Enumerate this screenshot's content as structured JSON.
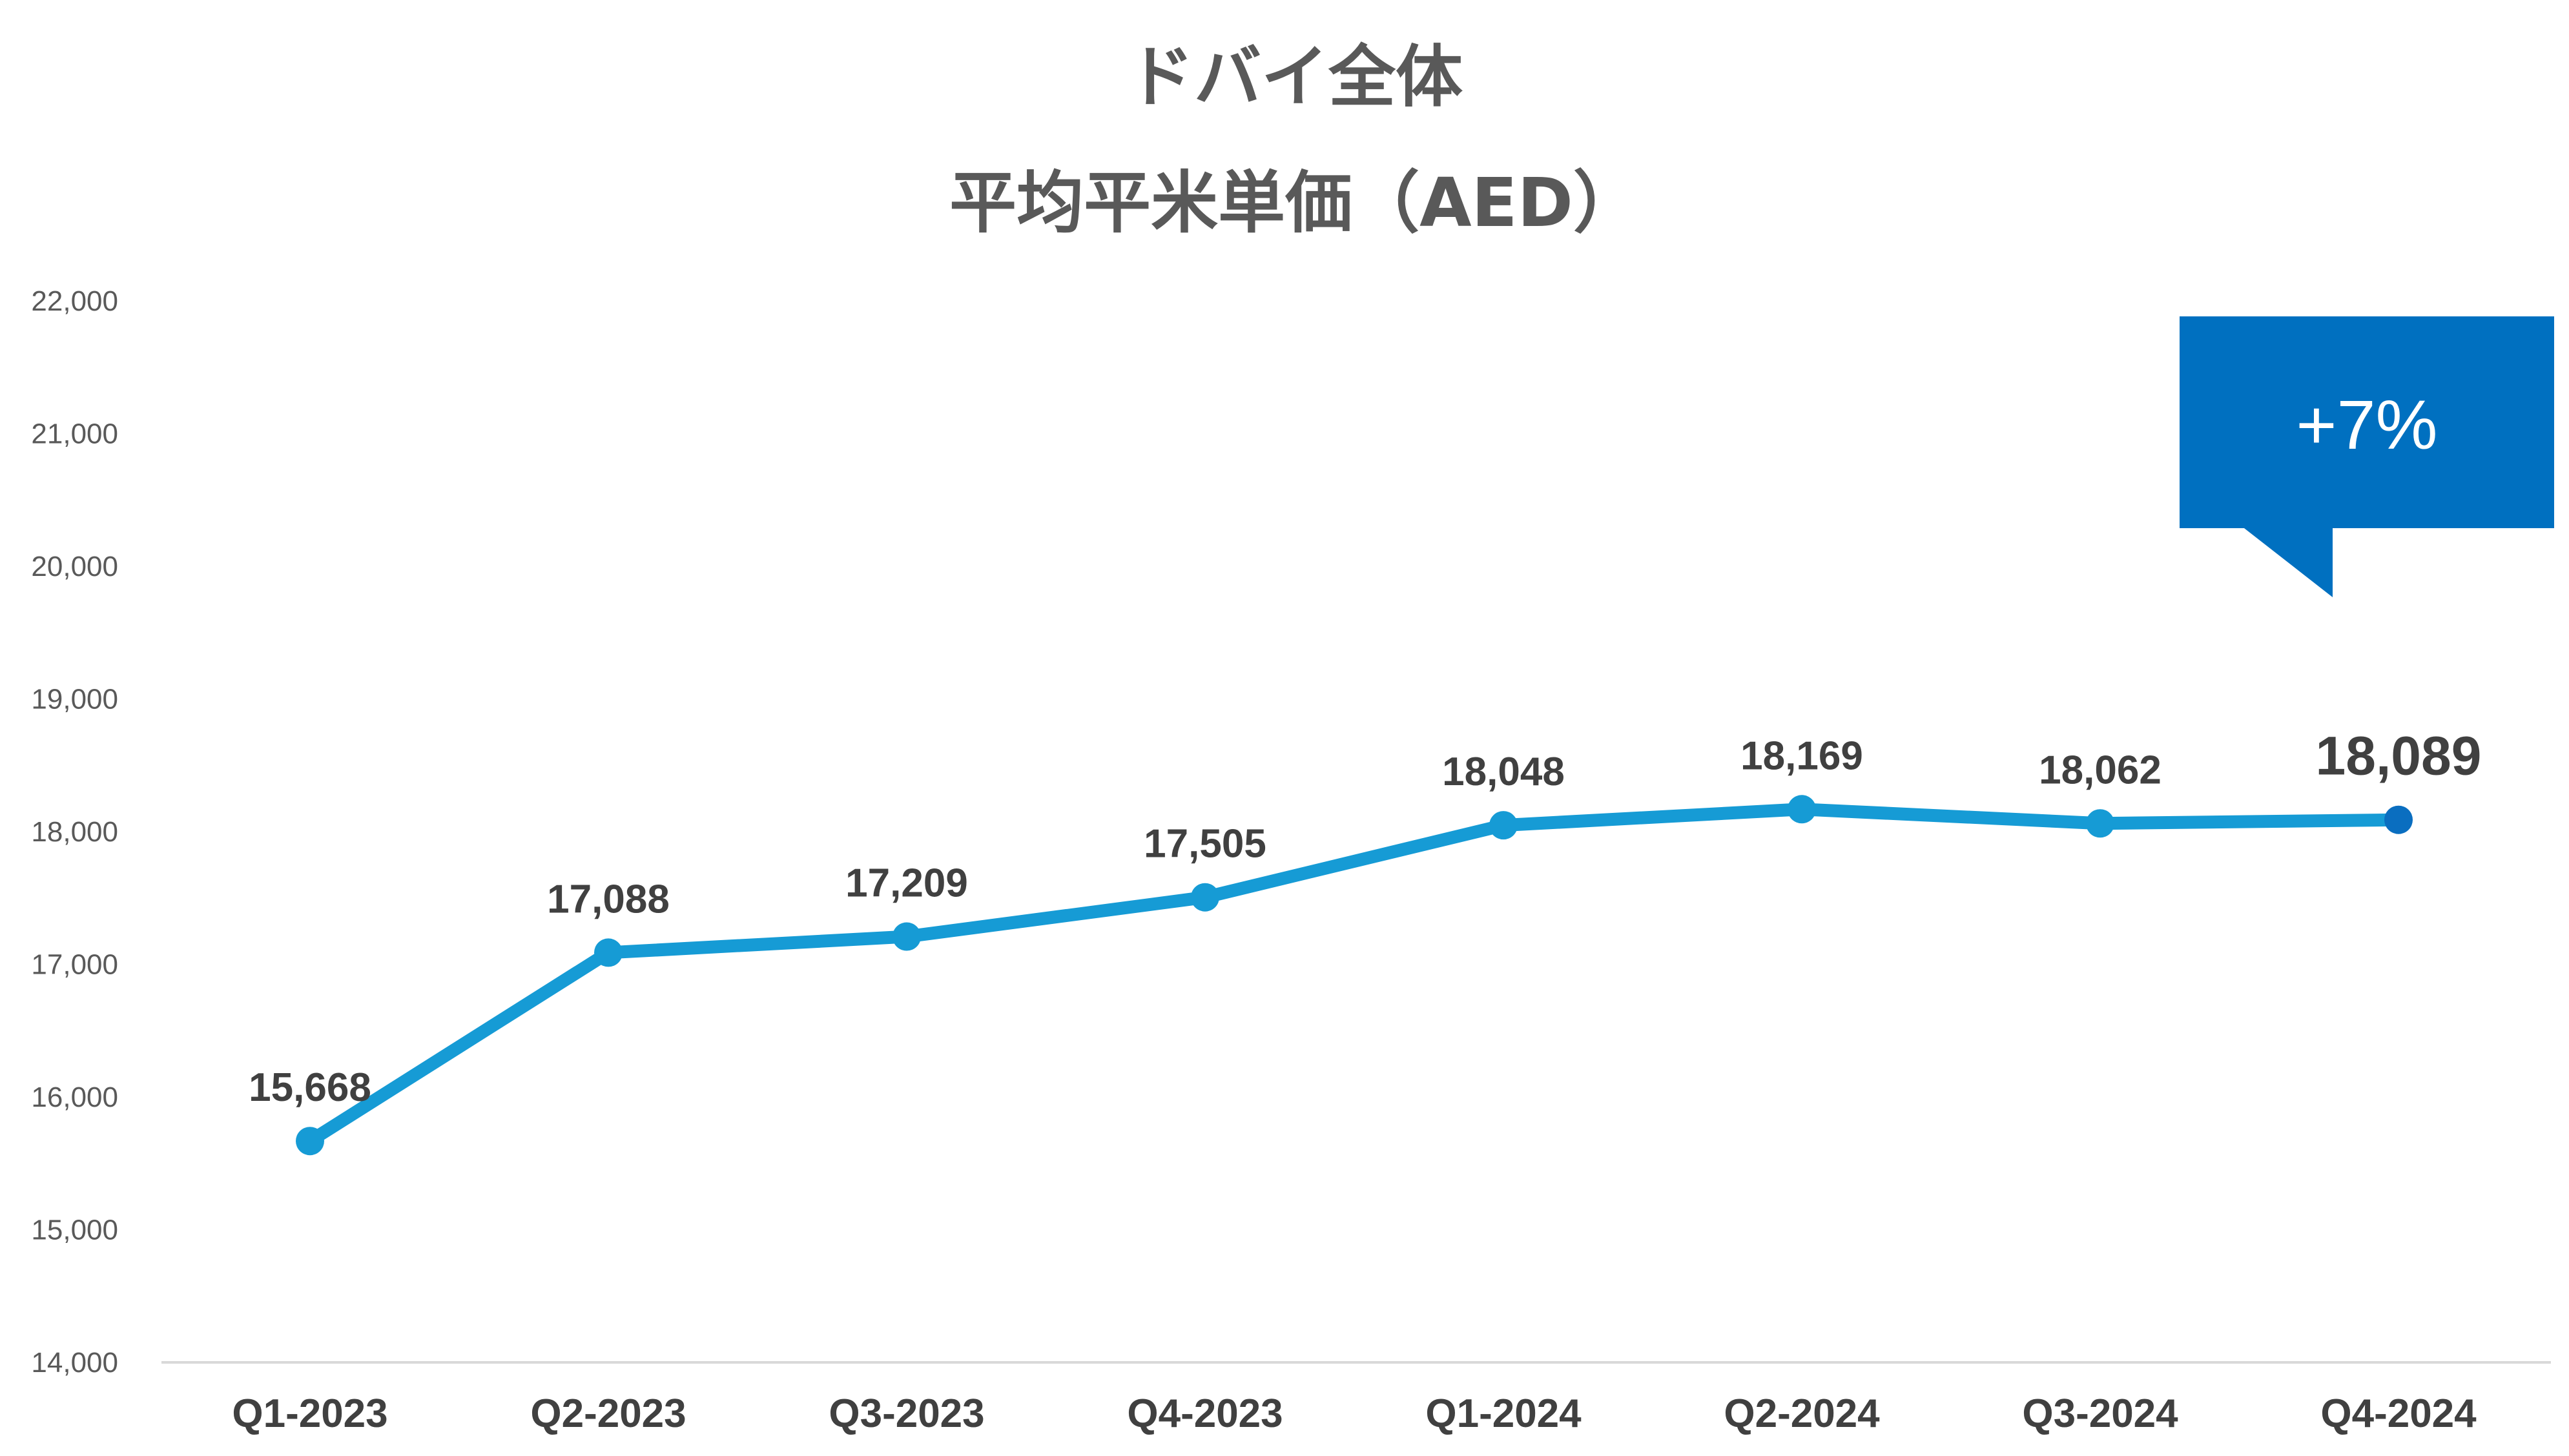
{
  "chart_data": {
    "type": "line",
    "title": "ドバイ全体",
    "subtitle": "平均平米単価（AED）",
    "categories": [
      "Q1-2023",
      "Q2-2023",
      "Q3-2023",
      "Q4-2023",
      "Q1-2024",
      "Q2-2024",
      "Q3-2024",
      "Q4-2024"
    ],
    "values": [
      15668,
      17088,
      17209,
      17505,
      18048,
      18169,
      18062,
      18089
    ],
    "data_labels": [
      "15,668",
      "17,088",
      "17,209",
      "17,505",
      "18,048",
      "18,169",
      "18,062",
      "18,089"
    ],
    "ylim": [
      14000,
      22000
    ],
    "yticks": [
      14000,
      15000,
      16000,
      17000,
      18000,
      19000,
      20000,
      21000,
      22000
    ],
    "ytick_labels": [
      "14,000",
      "15,000",
      "16,000",
      "17,000",
      "18,000",
      "19,000",
      "20,000",
      "21,000",
      "22,000"
    ],
    "grid": false,
    "legend": "none",
    "annotation": {
      "text": "+7%",
      "attached_to": "Q4-2024"
    },
    "colors": {
      "line": "#169BD5",
      "last_marker": "#0A6EC0",
      "callout": "#0070C0"
    }
  }
}
